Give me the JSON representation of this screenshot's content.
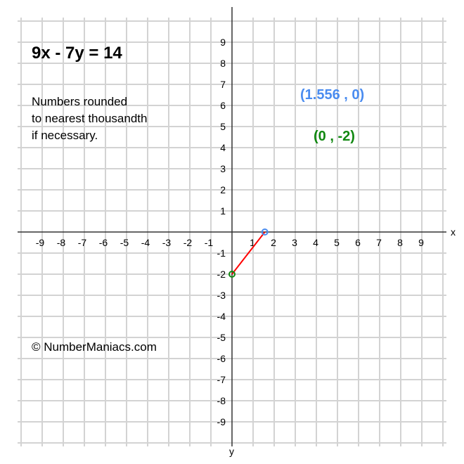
{
  "chart_data": {
    "type": "line",
    "title": "9x - 7y = 14",
    "note": "Numbers rounded to nearest thousandth if necessary.",
    "note_lines": [
      "Numbers rounded",
      "to nearest thousandth",
      "if necessary."
    ],
    "copyright": "© NumberManiacs.com",
    "xlabel": "x",
    "ylabel": "y",
    "xlim": [
      -10,
      10
    ],
    "ylim": [
      -10,
      10
    ],
    "grid": true,
    "x_ticks": [
      -9,
      -8,
      -7,
      -6,
      -5,
      -4,
      -3,
      -2,
      -1,
      1,
      2,
      3,
      4,
      5,
      6,
      7,
      8,
      9
    ],
    "y_ticks": [
      9,
      8,
      7,
      6,
      5,
      4,
      3,
      2,
      1,
      -1,
      -2,
      -3,
      -4,
      -5,
      -6,
      -7,
      -8,
      -9
    ],
    "series": [
      {
        "x": [
          0,
          1.556
        ],
        "y": [
          -2,
          0
        ],
        "color": "#ff0000"
      }
    ],
    "points": [
      {
        "label": "(1.556 , 0)",
        "x": 1.556,
        "y": 0,
        "color": "#4a8cf0"
      },
      {
        "label": "(0 , -2)",
        "x": 0,
        "y": -2,
        "color": "#118811"
      }
    ]
  }
}
